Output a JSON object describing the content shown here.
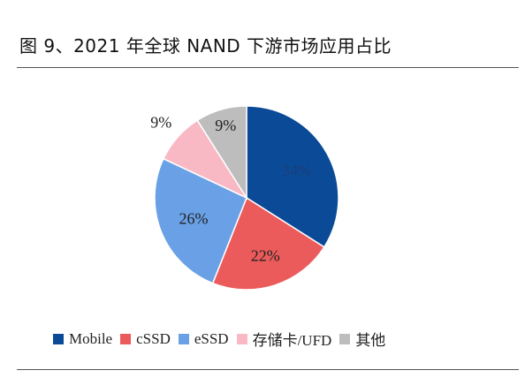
{
  "header": {
    "title": "图 9、2021 年全球 NAND 下游市场应用占比"
  },
  "chart_data": {
    "type": "pie",
    "title": "",
    "slices": [
      {
        "label": "Mobile",
        "value": 34,
        "display": "34%",
        "color": "#0b4a96"
      },
      {
        "label": "cSSD",
        "value": 22,
        "display": "22%",
        "color": "#ec5b5b"
      },
      {
        "label": "eSSD",
        "value": 26,
        "display": "26%",
        "color": "#6aa1e6"
      },
      {
        "label": "存储卡/UFD",
        "value": 9,
        "display": "9%",
        "color": "#f9b9c4"
      },
      {
        "label": "其他",
        "value": 9,
        "display": "9%",
        "color": "#bdbdbd"
      }
    ],
    "legend_position": "bottom"
  }
}
